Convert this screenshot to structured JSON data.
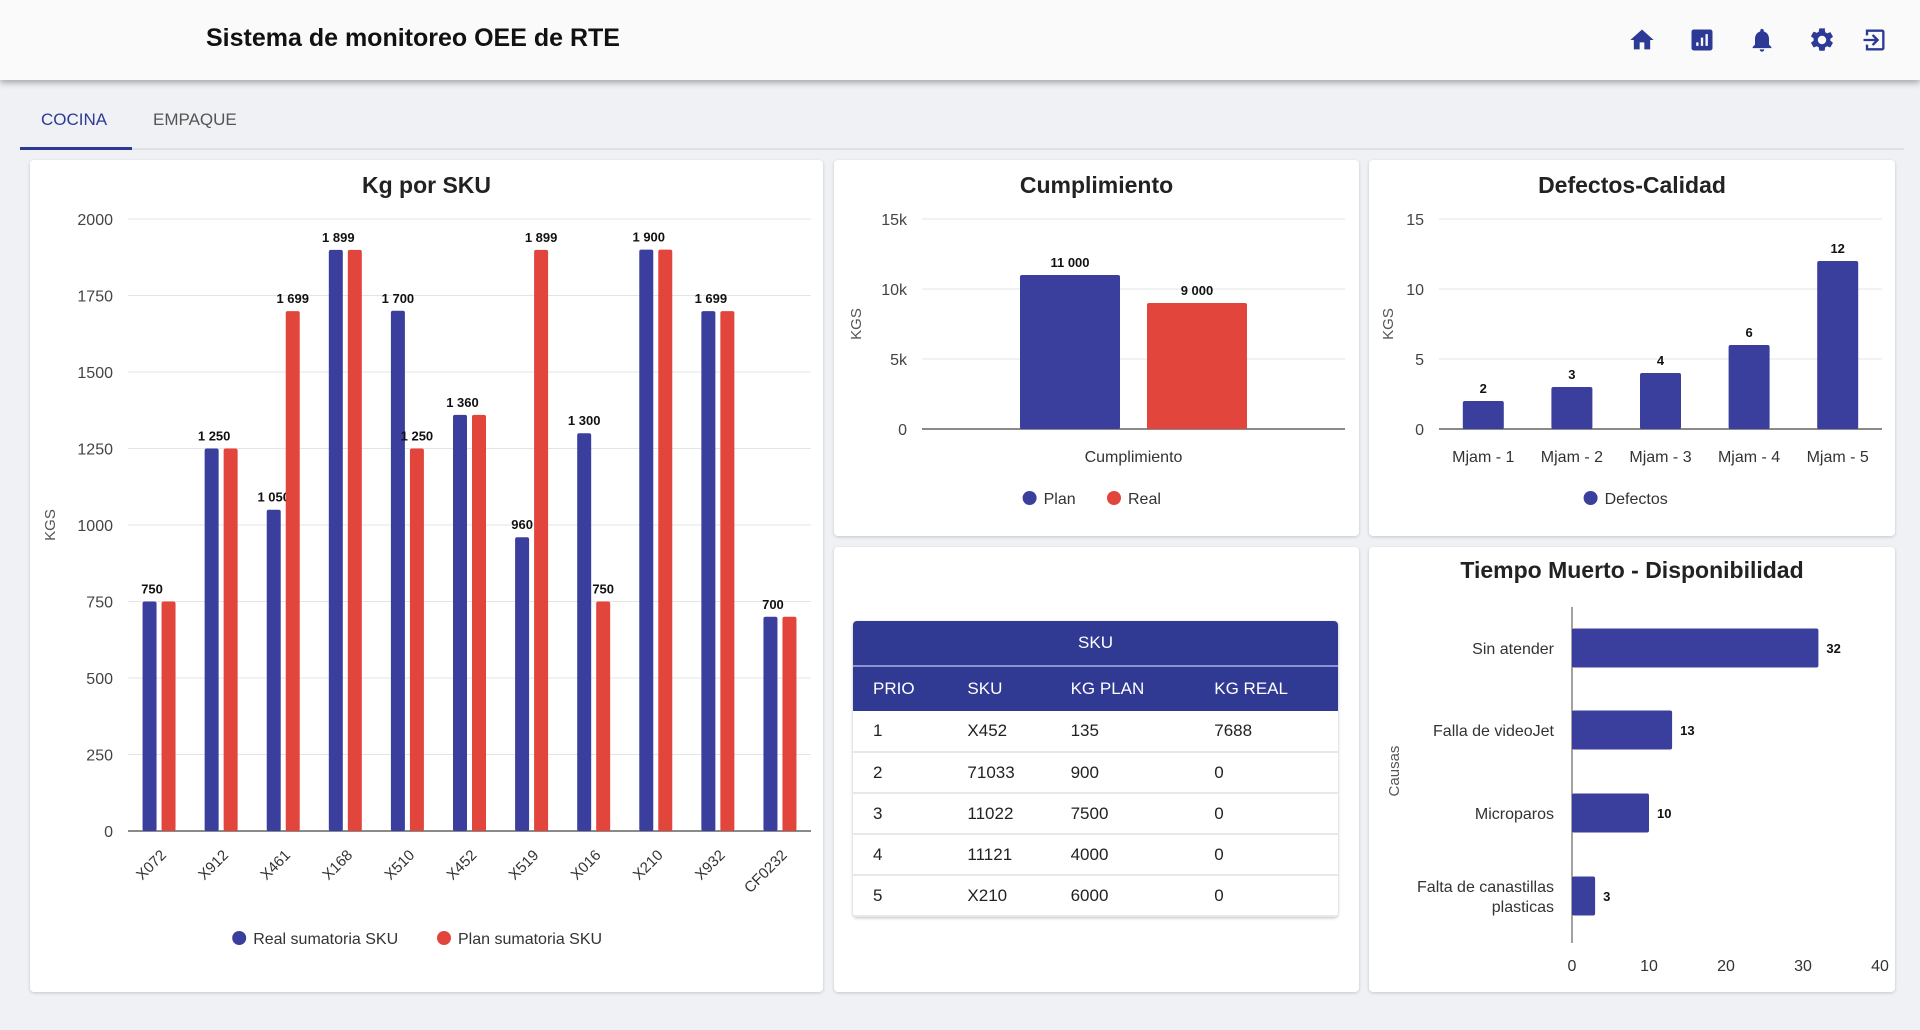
{
  "header": {
    "title": "Sistema de monitoreo OEE de RTE",
    "icons": [
      "home-icon",
      "report-icon",
      "bell-icon",
      "gear-icon",
      "logout-icon"
    ],
    "icon_color": "#2c3a96"
  },
  "tabs": [
    {
      "label": "COCINA",
      "active": true
    },
    {
      "label": "EMPAQUE",
      "active": false
    }
  ],
  "colors": {
    "blue": "#3a3f9e",
    "red": "#e2453c"
  },
  "chart_data": [
    {
      "type": "bar",
      "title": "Kg por SKU",
      "ylabel": "KGS",
      "ylim": [
        0,
        2000
      ],
      "yticks": [
        "0",
        "250",
        "500",
        "750",
        "1000",
        "1250",
        "1500",
        "1750",
        "2000"
      ],
      "yticks_values": [
        0,
        250,
        500,
        750,
        1000,
        1250,
        1500,
        1750,
        2000
      ],
      "categories": [
        "X072",
        "X912",
        "X461",
        "X168",
        "X510",
        "X452",
        "X519",
        "X016",
        "X210",
        "X932",
        "CF0232"
      ],
      "series": [
        {
          "name": "Real sumatoria SKU",
          "values": [
            750,
            1250,
            1050,
            1899,
            1700,
            1360,
            960,
            1300,
            1900,
            1699,
            700
          ],
          "labels": [
            "750",
            "1 250",
            "1 050",
            "1 899",
            "1 700",
            "1 360",
            "960",
            "1 300",
            "1 900",
            "1 699",
            "700"
          ]
        },
        {
          "name": "Plan sumatoria SKU",
          "values": [
            750,
            1250,
            1699,
            1899,
            1250,
            1360,
            1899,
            750,
            1900,
            1699,
            700
          ],
          "labels": [
            "750",
            "1 250",
            "1 699",
            "1 899",
            "1 250",
            "1 360",
            "1 899",
            "750",
            "1 900",
            "1 699",
            "700"
          ]
        }
      ],
      "legend": "bottom",
      "grid": true
    },
    {
      "type": "bar",
      "title": "Cumplimiento",
      "ylabel": "KGS",
      "ylim": [
        0,
        15000
      ],
      "yticks": [
        "0",
        "5k",
        "10k",
        "15k"
      ],
      "yticks_values": [
        0,
        5000,
        10000,
        15000
      ],
      "categories": [
        "Cumplimiento"
      ],
      "series": [
        {
          "name": "Plan",
          "values": [
            11000
          ],
          "labels": [
            "11 000"
          ]
        },
        {
          "name": "Real",
          "values": [
            9000
          ],
          "labels": [
            "9 000"
          ]
        }
      ],
      "legend": "bottom",
      "grid": true
    },
    {
      "type": "bar",
      "title": "Defectos-Calidad",
      "ylabel": "KGS",
      "ylim": [
        0,
        15
      ],
      "yticks": [
        "0",
        "5",
        "10",
        "15"
      ],
      "yticks_values": [
        0,
        5,
        10,
        15
      ],
      "categories": [
        "Mjam - 1",
        "Mjam - 2",
        "Mjam - 3",
        "Mjam - 4",
        "Mjam - 5"
      ],
      "series": [
        {
          "name": "Defectos",
          "values": [
            2,
            3,
            4,
            6,
            12
          ],
          "labels": [
            "2",
            "3",
            "4",
            "6",
            "12"
          ]
        }
      ],
      "legend": "bottom",
      "grid": true
    },
    {
      "type": "bar",
      "orientation": "horizontal",
      "title": "Tiempo Muerto - Disponibilidad",
      "ylabel": "Causas",
      "xlim": [
        0,
        40
      ],
      "xticks": [
        "0",
        "10",
        "20",
        "30",
        "40"
      ],
      "xticks_values": [
        0,
        10,
        20,
        30,
        40
      ],
      "categories": [
        "Sin atender",
        "Falla de videoJet",
        "Microparos",
        "Falta de canastillas plasticas"
      ],
      "series": [
        {
          "values": [
            32,
            13,
            10,
            3
          ],
          "labels": [
            "32",
            "13",
            "10",
            "3"
          ]
        }
      ],
      "grid": false
    }
  ],
  "table": {
    "title": "SKU",
    "columns": [
      "PRIO",
      "SKU",
      "KG PLAN",
      "KG REAL"
    ],
    "rows": [
      [
        "1",
        "X452",
        "135",
        "7688"
      ],
      [
        "2",
        "71033",
        "900",
        "0"
      ],
      [
        "3",
        "11022",
        "7500",
        "0"
      ],
      [
        "4",
        "11121",
        "4000",
        "0"
      ],
      [
        "5",
        "X210",
        "6000",
        "0"
      ]
    ]
  }
}
